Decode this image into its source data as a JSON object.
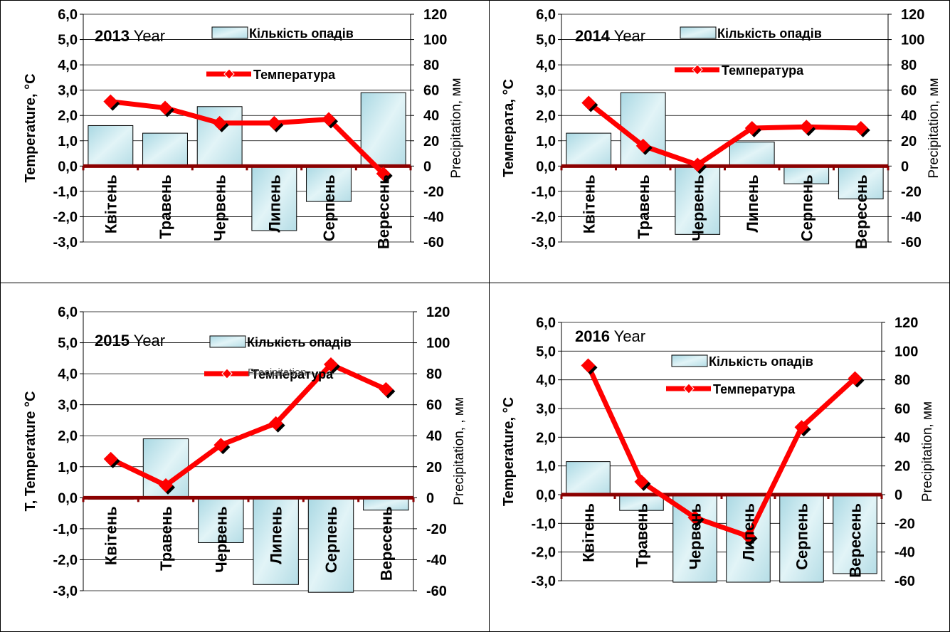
{
  "legend": {
    "precip_label": "Кількість опадів",
    "temp_label": "Температура"
  },
  "colors": {
    "bar_fill": "#c9e6ec",
    "bar_stroke": "#000000",
    "temp_line": "#ff0000",
    "zero_axis": "#8b0000",
    "grid": "#000000"
  },
  "chart_data": [
    {
      "type": "bar",
      "title_year": "2013",
      "title_suffix": " Year",
      "ylabel_left": "Temperature, °C",
      "ylabel_right": "Precipitation, мм",
      "categories": [
        "Квітень",
        "Травень",
        "Червень",
        "Липень",
        "Серпень",
        "Вересень"
      ],
      "ylim_left": [
        -3,
        6
      ],
      "ylim_right": [
        -60,
        120
      ],
      "yticks_left": [
        "6,0",
        "5,0",
        "4,0",
        "3,0",
        "2,0",
        "1,0",
        "0,0",
        "-1,0",
        "-2,0",
        "-3,0"
      ],
      "yticks_right": [
        "120",
        "100",
        "80",
        "60",
        "40",
        "20",
        "0",
        "-20",
        "-40",
        "-60"
      ],
      "series": [
        {
          "name": "Кількість опадів",
          "kind": "bar",
          "axis": "right",
          "values": [
            32,
            26,
            47,
            -51,
            -28,
            58
          ]
        },
        {
          "name": "Температура",
          "kind": "line",
          "axis": "left",
          "values": [
            2.55,
            2.3,
            1.7,
            1.7,
            1.85,
            -0.3
          ]
        }
      ]
    },
    {
      "type": "bar",
      "title_year": "2014",
      "title_suffix": " Year",
      "ylabel_left": "Температа, °C",
      "ylabel_right": "Precipitation, мм",
      "categories": [
        "Квітень",
        "Травень",
        "Червень",
        "Липень",
        "Серпень",
        "Вересень"
      ],
      "ylim_left": [
        -3,
        6
      ],
      "ylim_right": [
        -60,
        120
      ],
      "yticks_left": [
        "6,0",
        "5,0",
        "4,0",
        "3,0",
        "2,0",
        "1,0",
        "0,0",
        "-1,0",
        "-2,0",
        "-3,0"
      ],
      "yticks_right": [
        "120",
        "100",
        "80",
        "60",
        "40",
        "20",
        "0",
        "-20",
        "-40",
        "-60"
      ],
      "series": [
        {
          "name": "Кількість опадів",
          "kind": "bar",
          "axis": "right",
          "values": [
            26,
            58,
            -54,
            19,
            -14,
            -26
          ]
        },
        {
          "name": "Температура",
          "kind": "line",
          "axis": "left",
          "values": [
            2.5,
            0.8,
            0.05,
            1.5,
            1.55,
            1.5
          ]
        }
      ]
    },
    {
      "type": "bar",
      "title_year": "2015",
      "title_suffix": " Year",
      "ylabel_left": "Т, Temperature °С",
      "ylabel_right": "Precipitation, , мм",
      "overlay_text": "Precipitation",
      "categories": [
        "Квітень",
        "Травень",
        "Червень",
        "Липень",
        "Серпень",
        "Вересень"
      ],
      "ylim_left": [
        -3,
        6
      ],
      "ylim_right": [
        -60,
        120
      ],
      "yticks_left": [
        "6,0",
        "5,0",
        "4,0",
        "3,0",
        "2,0",
        "1,0",
        "0,0",
        "-1,0",
        "-2,0",
        "-3,0"
      ],
      "yticks_right": [
        "120",
        "100",
        "80",
        "60",
        "40",
        "20",
        "0",
        "-20",
        "-40",
        "-60"
      ],
      "series": [
        {
          "name": "Кількість опадів",
          "kind": "bar",
          "axis": "right",
          "values": [
            -1,
            38,
            -29,
            -56,
            -61,
            -8
          ]
        },
        {
          "name": "Температура",
          "kind": "line",
          "axis": "left",
          "values": [
            1.25,
            0.4,
            1.7,
            2.4,
            4.3,
            3.5
          ]
        }
      ]
    },
    {
      "type": "bar",
      "title_year": "2016",
      "title_suffix": " Year",
      "ylabel_left": "Temperature, °С",
      "ylabel_right": "Precipitation, мм",
      "categories": [
        "Квітень",
        "Травень",
        "Червень",
        "Липень",
        "Серпень",
        "Вересень"
      ],
      "ylim_left": [
        -3,
        6
      ],
      "ylim_right": [
        -60,
        120
      ],
      "yticks_left": [
        "6,0",
        "5,0",
        "4,0",
        "3,0",
        "2,0",
        "1,0",
        "0,0",
        "-1,0",
        "-2,0",
        "-3,0"
      ],
      "yticks_right": [
        "120",
        "100",
        "80",
        "60",
        "40",
        "20",
        "0",
        "-20",
        "-40",
        "-60"
      ],
      "series": [
        {
          "name": "Кількість опадів",
          "kind": "bar",
          "axis": "right",
          "values": [
            23,
            -11,
            -61,
            -61,
            -61,
            -55
          ]
        },
        {
          "name": "Температура",
          "kind": "line",
          "axis": "left",
          "values": [
            4.5,
            0.45,
            -0.8,
            -1.45,
            2.35,
            4.05
          ]
        }
      ]
    }
  ]
}
